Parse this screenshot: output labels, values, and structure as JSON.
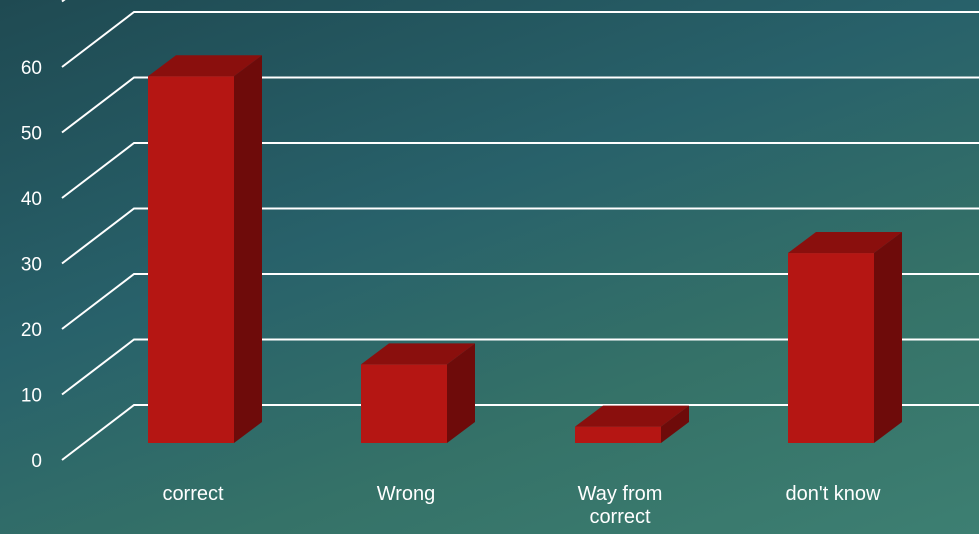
{
  "chart_data": {
    "type": "bar",
    "style": "3d-column",
    "categories": [
      [
        "correct"
      ],
      [
        "Wrong"
      ],
      [
        "Way from",
        "correct"
      ],
      [
        "don't know"
      ]
    ],
    "values": [
      56,
      12,
      2.5,
      29
    ],
    "y_ticks": [
      "0",
      "10",
      "20",
      "30",
      "40",
      "50",
      "60"
    ],
    "ylim": [
      0,
      70
    ],
    "grid": true,
    "bar_colors": {
      "front": "#b51613",
      "top": "#8a0f0d",
      "side": "#6e0b0a"
    },
    "background_colors": [
      "#1f4a52",
      "#3d7f72"
    ]
  }
}
